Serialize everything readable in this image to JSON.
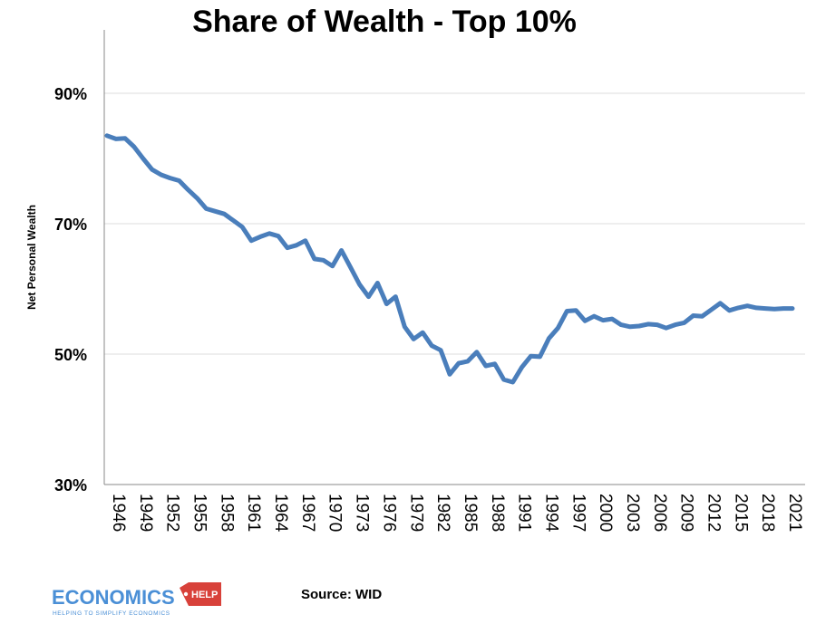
{
  "chart_data": {
    "type": "line",
    "title": "Share of Wealth - Top 10%",
    "ylabel": "Net Personal Wealth",
    "xlabel": "",
    "ylim": [
      30,
      100
    ],
    "yticks": [
      30,
      50,
      70,
      90
    ],
    "ytick_labels": [
      "30%",
      "50%",
      "70%",
      "90%"
    ],
    "xtick_labels": [
      "1946",
      "1949",
      "1952",
      "1955",
      "1958",
      "1961",
      "1964",
      "1967",
      "1970",
      "1973",
      "1976",
      "1979",
      "1982",
      "1985",
      "1988",
      "1991",
      "1994",
      "1997",
      "2000",
      "2003",
      "2006",
      "2009",
      "2012",
      "2015",
      "2018",
      "2021"
    ],
    "grid": true,
    "legend": "none",
    "line_color": "#4a7ebb",
    "series": [
      {
        "x": [
          1946,
          1947,
          1948,
          1949,
          1950,
          1951,
          1952,
          1953,
          1954,
          1955,
          1956,
          1957,
          1958,
          1959,
          1960,
          1961,
          1962,
          1963,
          1964,
          1965,
          1966,
          1967,
          1968,
          1969,
          1970,
          1971,
          1972,
          1973,
          1974,
          1975,
          1976,
          1977,
          1978,
          1979,
          1980,
          1981,
          1982,
          1983,
          1984,
          1985,
          1986,
          1987,
          1988,
          1989,
          1990,
          1991,
          1992,
          1993,
          1994,
          1995,
          1996,
          1997,
          1998,
          1999,
          2000,
          2001,
          2002,
          2003,
          2004,
          2005,
          2006,
          2007,
          2008,
          2009,
          2010,
          2011,
          2012,
          2013,
          2014,
          2015,
          2016,
          2017,
          2018,
          2019,
          2020,
          2021,
          2022
        ],
        "values": [
          83.5,
          83.0,
          83.1,
          81.8,
          80.0,
          78.3,
          77.5,
          77.0,
          76.6,
          75.2,
          73.9,
          72.3,
          71.9,
          71.5,
          70.5,
          69.5,
          67.4,
          68.0,
          68.5,
          68.1,
          66.3,
          66.7,
          67.4,
          64.6,
          64.4,
          63.5,
          65.9,
          63.3,
          60.7,
          58.8,
          60.9,
          57.7,
          58.8,
          54.2,
          52.3,
          53.3,
          51.3,
          50.6,
          46.9,
          48.6,
          48.9,
          50.3,
          48.2,
          48.5,
          46.1,
          45.7,
          48.0,
          49.7,
          49.6,
          52.4,
          54.0,
          56.6,
          56.7,
          55.1,
          55.8,
          55.2,
          55.4,
          54.5,
          54.2,
          54.3,
          54.6,
          54.5,
          54.0,
          54.5,
          54.8,
          55.9,
          55.8,
          56.8,
          57.8,
          56.7,
          57.1,
          57.4,
          57.1,
          57.0,
          56.9,
          57.0,
          57.0
        ]
      }
    ]
  },
  "source": "Source: WID",
  "logo": {
    "word": "ECONOMICS",
    "tag": "HELP",
    "tagline": "HELPING TO SIMPLIFY ECONOMICS",
    "primary_color": "#4a8fd6",
    "accent_color": "#d8413a"
  }
}
